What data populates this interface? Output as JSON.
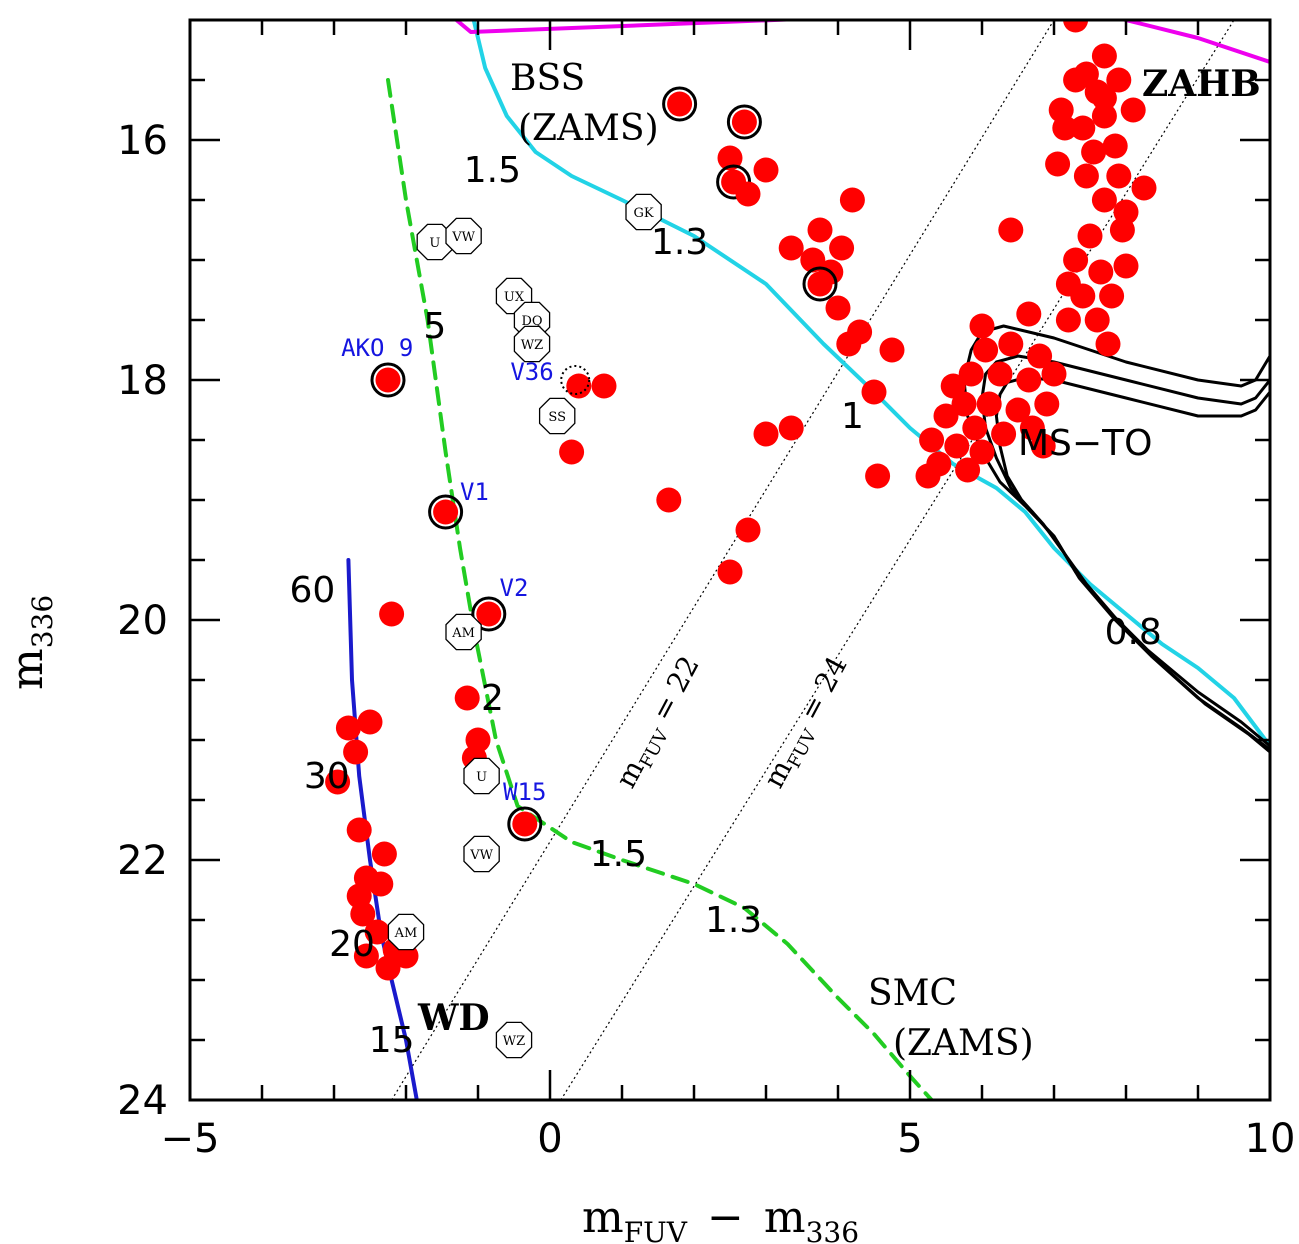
{
  "chart_data": {
    "type": "scatter",
    "title": "",
    "xlabel": "m",
    "xlabel_sub": "FUV",
    "xlabel_mid": "−",
    "xlabel2": "m",
    "xlabel2_sub": "336",
    "ylabel": "m",
    "ylabel_sub": "336",
    "xlim": [
      -5,
      10
    ],
    "ylim": [
      24,
      15
    ],
    "x_ticks": [
      -5,
      0,
      5,
      10
    ],
    "x_tick_labels": [
      "−5",
      "0",
      "5",
      "10"
    ],
    "y_ticks": [
      16,
      18,
      20,
      22,
      24
    ],
    "y_tick_labels": [
      "16",
      "18",
      "20",
      "22",
      "24"
    ],
    "stars": [
      {
        "x": 1.8,
        "y": 15.7,
        "ring": true
      },
      {
        "x": 2.7,
        "y": 15.85,
        "ring": true
      },
      {
        "x": 2.5,
        "y": 16.15,
        "ring": false
      },
      {
        "x": 2.55,
        "y": 16.35,
        "ring": true
      },
      {
        "x": 2.75,
        "y": 16.45,
        "ring": false
      },
      {
        "x": 3.0,
        "y": 16.25,
        "ring": false
      },
      {
        "x": 4.2,
        "y": 16.5,
        "ring": false
      },
      {
        "x": 3.35,
        "y": 16.9,
        "ring": false
      },
      {
        "x": 3.65,
        "y": 17.0,
        "ring": false
      },
      {
        "x": 3.75,
        "y": 16.75,
        "ring": false
      },
      {
        "x": 4.05,
        "y": 16.9,
        "ring": false
      },
      {
        "x": 3.9,
        "y": 17.1,
        "ring": false
      },
      {
        "x": 3.75,
        "y": 17.2,
        "ring": true
      },
      {
        "x": 4.0,
        "y": 17.4,
        "ring": false
      },
      {
        "x": 4.3,
        "y": 17.6,
        "ring": false
      },
      {
        "x": 4.15,
        "y": 17.7,
        "ring": false
      },
      {
        "x": 4.75,
        "y": 17.75,
        "ring": false
      },
      {
        "x": 4.5,
        "y": 18.1,
        "ring": false
      },
      {
        "x": 3.0,
        "y": 18.45,
        "ring": false
      },
      {
        "x": 3.35,
        "y": 18.4,
        "ring": false
      },
      {
        "x": 4.55,
        "y": 18.8,
        "ring": false
      },
      {
        "x": 1.65,
        "y": 19.0,
        "ring": false
      },
      {
        "x": 2.75,
        "y": 19.25,
        "ring": false
      },
      {
        "x": 2.5,
        "y": 19.6,
        "ring": false
      },
      {
        "x": 0.3,
        "y": 18.6,
        "ring": false
      },
      {
        "x": 0.4,
        "y": 18.05,
        "ring": false
      },
      {
        "x": 0.75,
        "y": 18.05,
        "ring": false
      },
      {
        "x": -2.25,
        "y": 18.0,
        "ring": true
      },
      {
        "x": -1.45,
        "y": 19.1,
        "ring": true
      },
      {
        "x": -0.85,
        "y": 19.95,
        "ring": true
      },
      {
        "x": -2.2,
        "y": 19.95,
        "ring": false
      },
      {
        "x": -1.15,
        "y": 20.65,
        "ring": false
      },
      {
        "x": -1.0,
        "y": 21.0,
        "ring": false
      },
      {
        "x": -1.05,
        "y": 21.15,
        "ring": false
      },
      {
        "x": -0.35,
        "y": 21.7,
        "ring": true
      },
      {
        "x": -2.8,
        "y": 20.9,
        "ring": false
      },
      {
        "x": -2.5,
        "y": 20.85,
        "ring": false
      },
      {
        "x": -2.7,
        "y": 21.1,
        "ring": false
      },
      {
        "x": -2.95,
        "y": 21.35,
        "ring": false
      },
      {
        "x": -2.65,
        "y": 21.75,
        "ring": false
      },
      {
        "x": -2.3,
        "y": 21.95,
        "ring": false
      },
      {
        "x": -2.55,
        "y": 22.15,
        "ring": false
      },
      {
        "x": -2.65,
        "y": 22.3,
        "ring": false
      },
      {
        "x": -2.35,
        "y": 22.2,
        "ring": false
      },
      {
        "x": -2.6,
        "y": 22.45,
        "ring": false
      },
      {
        "x": -2.4,
        "y": 22.6,
        "ring": false
      },
      {
        "x": -2.55,
        "y": 22.8,
        "ring": false
      },
      {
        "x": -2.15,
        "y": 22.75,
        "ring": false
      },
      {
        "x": -2.0,
        "y": 22.8,
        "ring": false
      },
      {
        "x": -2.25,
        "y": 22.9,
        "ring": false
      },
      {
        "x": 7.3,
        "y": 15.5,
        "ring": false
      },
      {
        "x": 7.6,
        "y": 15.6,
        "ring": false
      },
      {
        "x": 7.9,
        "y": 15.5,
        "ring": false
      },
      {
        "x": 7.1,
        "y": 15.75,
        "ring": false
      },
      {
        "x": 7.4,
        "y": 15.9,
        "ring": false
      },
      {
        "x": 7.7,
        "y": 15.8,
        "ring": false
      },
      {
        "x": 8.1,
        "y": 15.75,
        "ring": false
      },
      {
        "x": 7.55,
        "y": 16.1,
        "ring": false
      },
      {
        "x": 7.85,
        "y": 16.05,
        "ring": false
      },
      {
        "x": 7.45,
        "y": 16.3,
        "ring": false
      },
      {
        "x": 7.9,
        "y": 16.3,
        "ring": false
      },
      {
        "x": 8.25,
        "y": 16.4,
        "ring": false
      },
      {
        "x": 7.7,
        "y": 16.5,
        "ring": false
      },
      {
        "x": 7.5,
        "y": 16.8,
        "ring": false
      },
      {
        "x": 7.95,
        "y": 16.75,
        "ring": false
      },
      {
        "x": 7.3,
        "y": 17.0,
        "ring": false
      },
      {
        "x": 7.65,
        "y": 17.1,
        "ring": false
      },
      {
        "x": 8.0,
        "y": 17.05,
        "ring": false
      },
      {
        "x": 7.4,
        "y": 17.3,
        "ring": false
      },
      {
        "x": 7.2,
        "y": 17.5,
        "ring": false
      },
      {
        "x": 7.6,
        "y": 17.5,
        "ring": false
      },
      {
        "x": 6.65,
        "y": 17.45,
        "ring": false
      },
      {
        "x": 6.0,
        "y": 17.55,
        "ring": false
      },
      {
        "x": 7.75,
        "y": 17.7,
        "ring": false
      },
      {
        "x": 7.05,
        "y": 16.2,
        "ring": false
      },
      {
        "x": 6.4,
        "y": 16.75,
        "ring": false
      },
      {
        "x": 7.15,
        "y": 15.9,
        "ring": false
      },
      {
        "x": 8.0,
        "y": 16.6,
        "ring": false
      },
      {
        "x": 7.8,
        "y": 17.3,
        "ring": false
      },
      {
        "x": 7.45,
        "y": 15.45,
        "ring": false
      },
      {
        "x": 7.2,
        "y": 17.2,
        "ring": false
      },
      {
        "x": 7.7,
        "y": 15.65,
        "ring": false
      },
      {
        "x": 6.05,
        "y": 17.75,
        "ring": false
      },
      {
        "x": 6.4,
        "y": 17.7,
        "ring": false
      },
      {
        "x": 6.8,
        "y": 17.8,
        "ring": false
      },
      {
        "x": 5.85,
        "y": 17.95,
        "ring": false
      },
      {
        "x": 6.25,
        "y": 17.95,
        "ring": false
      },
      {
        "x": 6.65,
        "y": 18.0,
        "ring": false
      },
      {
        "x": 7.0,
        "y": 17.95,
        "ring": false
      },
      {
        "x": 5.75,
        "y": 18.2,
        "ring": false
      },
      {
        "x": 6.1,
        "y": 18.2,
        "ring": false
      },
      {
        "x": 6.5,
        "y": 18.25,
        "ring": false
      },
      {
        "x": 6.9,
        "y": 18.2,
        "ring": false
      },
      {
        "x": 5.5,
        "y": 18.3,
        "ring": false
      },
      {
        "x": 5.9,
        "y": 18.4,
        "ring": false
      },
      {
        "x": 6.3,
        "y": 18.45,
        "ring": false
      },
      {
        "x": 6.7,
        "y": 18.4,
        "ring": false
      },
      {
        "x": 5.3,
        "y": 18.5,
        "ring": false
      },
      {
        "x": 5.65,
        "y": 18.55,
        "ring": false
      },
      {
        "x": 6.0,
        "y": 18.6,
        "ring": false
      },
      {
        "x": 5.4,
        "y": 18.7,
        "ring": false
      },
      {
        "x": 5.8,
        "y": 18.75,
        "ring": false
      },
      {
        "x": 5.25,
        "y": 18.8,
        "ring": false
      },
      {
        "x": 6.85,
        "y": 18.55,
        "ring": false
      },
      {
        "x": 5.6,
        "y": 18.05,
        "ring": false
      },
      {
        "x": 7.7,
        "y": 15.3,
        "ring": false
      },
      {
        "x": 7.3,
        "y": 15.0,
        "ring": false
      }
    ],
    "cv_symbols": [
      {
        "x": -1.6,
        "y": 16.85,
        "label": "U"
      },
      {
        "x": -1.2,
        "y": 16.8,
        "label": "VW"
      },
      {
        "x": 1.3,
        "y": 16.6,
        "label": "GK"
      },
      {
        "x": -0.5,
        "y": 17.3,
        "label": "UX"
      },
      {
        "x": -0.25,
        "y": 17.5,
        "label": "DQ"
      },
      {
        "x": -0.25,
        "y": 17.7,
        "label": "WZ"
      },
      {
        "x": 0.1,
        "y": 18.3,
        "label": "SS"
      },
      {
        "x": -1.2,
        "y": 20.1,
        "label": "AM"
      },
      {
        "x": -0.95,
        "y": 21.3,
        "label": "U"
      },
      {
        "x": -0.95,
        "y": 21.95,
        "label": "VW"
      },
      {
        "x": -2.0,
        "y": 22.6,
        "label": "AM"
      },
      {
        "x": -0.5,
        "y": 23.5,
        "label": "WZ"
      }
    ],
    "named_stars": [
      {
        "x": -2.4,
        "y": 17.8,
        "label": "AKO 9"
      },
      {
        "x": -0.25,
        "y": 18.0,
        "label": "V36"
      },
      {
        "x": -1.05,
        "y": 19.0,
        "label": "V1"
      },
      {
        "x": -0.5,
        "y": 19.8,
        "label": "V2"
      },
      {
        "x": -0.35,
        "y": 21.5,
        "label": "W15"
      }
    ],
    "annotations": {
      "bss": "BSS",
      "bss_zams": "(ZAMS)",
      "zahb": "ZAHB",
      "ms_to": "MS−TO",
      "wd": "WD",
      "smc": "SMC",
      "smc_zams": "(ZAMS)",
      "line22_main": "m",
      "line22_sub": "FUV",
      "line22_rest": " = 22",
      "line24_main": "m",
      "line24_sub": "FUV",
      "line24_rest": " = 24"
    },
    "mass_labels": [
      {
        "x": -0.8,
        "y": 16.35,
        "label": "1.5"
      },
      {
        "x": 1.8,
        "y": 16.95,
        "label": "1.3"
      },
      {
        "x": 4.2,
        "y": 18.4,
        "label": "1"
      },
      {
        "x": 8.1,
        "y": 20.2,
        "label": "0.8"
      },
      {
        "x": -1.6,
        "y": 17.65,
        "label": "5"
      },
      {
        "x": -0.8,
        "y": 20.75,
        "label": "2"
      },
      {
        "x": 0.95,
        "y": 22.05,
        "label": "1.5"
      },
      {
        "x": 2.55,
        "y": 22.6,
        "label": "1.3"
      },
      {
        "x": -3.3,
        "y": 19.85,
        "label": "60"
      },
      {
        "x": -3.1,
        "y": 21.4,
        "label": "30"
      },
      {
        "x": -2.75,
        "y": 22.8,
        "label": "20"
      },
      {
        "x": -2.2,
        "y": 23.6,
        "label": "15"
      }
    ],
    "series": [
      {
        "name": "BSS (ZAMS)",
        "color": "#22d3e6",
        "style": "solid",
        "x": [
          -1.1,
          -0.9,
          -0.6,
          -0.2,
          0.3,
          1.0,
          2.0,
          3.0,
          3.8,
          4.5,
          5.0,
          5.6,
          6.2,
          6.6,
          7.0,
          7.5,
          8.0,
          8.5,
          9.0,
          9.5,
          10.0
        ],
        "y": [
          14.9,
          15.4,
          15.8,
          16.1,
          16.3,
          16.5,
          16.8,
          17.2,
          17.7,
          18.1,
          18.4,
          18.7,
          18.9,
          19.1,
          19.4,
          19.7,
          19.95,
          20.2,
          20.4,
          20.65,
          21.05
        ]
      },
      {
        "name": "ZAHB",
        "color": "#ee00ee",
        "style": "solid",
        "x": [
          -1.3,
          -1.1,
          7.3,
          8.0,
          9.0,
          10.0
        ],
        "y": [
          15.0,
          15.1,
          14.9,
          15.0,
          15.15,
          15.35
        ]
      },
      {
        "name": "SMC (ZAMS)",
        "color": "#22cc22",
        "style": "dashed",
        "x": [
          -2.25,
          -2.0,
          -1.7,
          -1.45,
          -1.25,
          -1.05,
          -0.75,
          -0.45,
          0.3,
          1.0,
          2.0,
          2.7,
          3.3,
          4.0,
          4.5,
          5.0,
          5.3
        ],
        "y": [
          15.5,
          16.5,
          17.5,
          18.6,
          19.4,
          20.1,
          21.0,
          21.55,
          21.85,
          22.0,
          22.2,
          22.4,
          22.7,
          23.15,
          23.45,
          23.8,
          24.0
        ]
      },
      {
        "name": "WD",
        "color": "#1a1acc",
        "style": "solid",
        "x": [
          -2.8,
          -2.75,
          -2.65,
          -2.5,
          -2.35,
          -2.2,
          -2.0,
          -1.85
        ],
        "y": [
          19.5,
          20.5,
          21.3,
          22.0,
          22.6,
          23.0,
          23.5,
          24.0
        ]
      },
      {
        "name": "isochrone-1",
        "color": "#000000",
        "style": "solid",
        "x": [
          10.0,
          9.8,
          9.6,
          9.0,
          8.0,
          7.0,
          6.3,
          6.0,
          5.85,
          5.75,
          5.8,
          6.0,
          6.25,
          6.6,
          7.0,
          7.3,
          7.8,
          8.3,
          9.0,
          9.6,
          10.0
        ],
        "y": [
          17.8,
          18.0,
          18.05,
          18.0,
          17.85,
          17.65,
          17.55,
          17.6,
          17.75,
          18.0,
          18.3,
          18.6,
          18.85,
          19.05,
          19.3,
          19.6,
          19.95,
          20.25,
          20.6,
          20.85,
          21.05
        ]
      },
      {
        "name": "isochrone-2",
        "color": "#000000",
        "style": "solid",
        "x": [
          10.0,
          9.8,
          9.6,
          9.0,
          8.0,
          7.0,
          6.5,
          6.2,
          6.05,
          6.0,
          6.05,
          6.2,
          6.4,
          6.7,
          7.05,
          7.35,
          7.85,
          8.35,
          9.0,
          9.6,
          10.0
        ],
        "y": [
          18.0,
          18.15,
          18.2,
          18.15,
          18.0,
          17.85,
          17.8,
          17.85,
          17.95,
          18.15,
          18.4,
          18.65,
          18.9,
          19.1,
          19.35,
          19.65,
          20.0,
          20.3,
          20.65,
          20.9,
          21.08
        ]
      },
      {
        "name": "isochrone-3",
        "color": "#000000",
        "style": "solid",
        "x": [
          10.0,
          9.8,
          9.6,
          9.0,
          8.0,
          7.0,
          6.6,
          6.35,
          6.25,
          6.2,
          6.25,
          6.35,
          6.55,
          6.85,
          7.15,
          7.45,
          7.95,
          8.45,
          9.1,
          9.7,
          10.0
        ],
        "y": [
          18.1,
          18.25,
          18.3,
          18.3,
          18.15,
          18.0,
          17.98,
          18.02,
          18.12,
          18.3,
          18.55,
          18.8,
          19.0,
          19.2,
          19.45,
          19.7,
          20.05,
          20.35,
          20.7,
          20.95,
          21.1
        ]
      }
    ],
    "dotted_lines": [
      {
        "name": "mFUV=22",
        "x": [
          -2.2,
          7.0
        ],
        "y": [
          24.0,
          15.0
        ]
      },
      {
        "name": "mFUV=24",
        "x": [
          0.15,
          9.5
        ],
        "y": [
          24.0,
          15.0
        ]
      }
    ]
  }
}
